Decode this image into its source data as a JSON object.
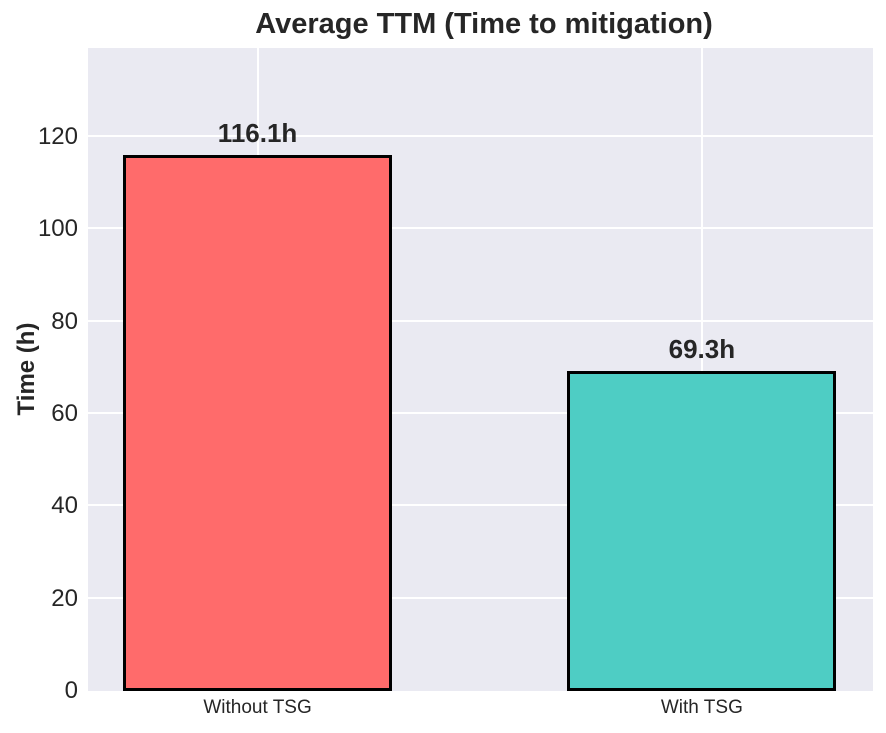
{
  "chart_data": {
    "type": "bar",
    "title": "Average TTM (Time to mitigation)",
    "ylabel": "Time (h)",
    "xlabel": "",
    "categories": [
      "Without TSG",
      "With TSG"
    ],
    "values": [
      116.1,
      69.3
    ],
    "value_labels": [
      "116.1h",
      "69.3h"
    ],
    "bar_colors": [
      "#ff6b6b",
      "#4ecdc4"
    ],
    "bar_edge_color": "#000000",
    "yticks": [
      0,
      20,
      40,
      60,
      80,
      100,
      120
    ],
    "ylim": [
      0,
      139.3
    ],
    "grid": "on",
    "grid_color": "#ffffff",
    "plot_background": "#eaeaf2",
    "text_color": "#262626",
    "legend_position": "none"
  }
}
